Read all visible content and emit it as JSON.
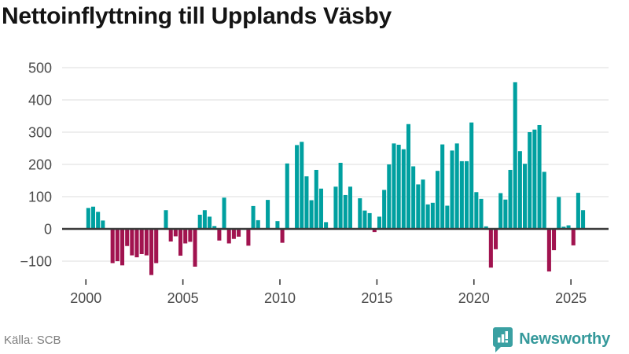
{
  "header": {
    "title": "Nettoinflyttning till Upplands Väsby"
  },
  "footer": {
    "source": "Källa: SCB",
    "brand": "Newsworthy"
  },
  "colors": {
    "positive": "#00A0A0",
    "negative": "#A1134F",
    "grid": "#E3E3E3",
    "axis": "#3A3A3A",
    "tick_label": "#4A4A4A",
    "title": "#141414",
    "source_text": "#7D7D7D",
    "brand_teal": "#35999B",
    "background": "#FFFFFF"
  },
  "chart_data": {
    "type": "bar",
    "title": "Nettoinflyttning till Upplands Väsby",
    "frequency": "quarterly",
    "x_start": "2000Q1",
    "x_end": "2025Q3",
    "categories": [
      "2000Q1",
      "2000Q2",
      "2000Q3",
      "2000Q4",
      "2001Q1",
      "2001Q2",
      "2001Q3",
      "2001Q4",
      "2002Q1",
      "2002Q2",
      "2002Q3",
      "2002Q4",
      "2003Q1",
      "2003Q2",
      "2003Q3",
      "2003Q4",
      "2004Q1",
      "2004Q2",
      "2004Q3",
      "2004Q4",
      "2005Q1",
      "2005Q2",
      "2005Q3",
      "2005Q4",
      "2006Q1",
      "2006Q2",
      "2006Q3",
      "2006Q4",
      "2007Q1",
      "2007Q2",
      "2007Q3",
      "2007Q4",
      "2008Q1",
      "2008Q2",
      "2008Q3",
      "2008Q4",
      "2009Q1",
      "2009Q2",
      "2009Q3",
      "2009Q4",
      "2010Q1",
      "2010Q2",
      "2010Q3",
      "2010Q4",
      "2011Q1",
      "2011Q2",
      "2011Q3",
      "2011Q4",
      "2012Q1",
      "2012Q2",
      "2012Q3",
      "2012Q4",
      "2013Q1",
      "2013Q2",
      "2013Q3",
      "2013Q4",
      "2014Q1",
      "2014Q2",
      "2014Q3",
      "2014Q4",
      "2015Q1",
      "2015Q2",
      "2015Q3",
      "2015Q4",
      "2016Q1",
      "2016Q2",
      "2016Q3",
      "2016Q4",
      "2017Q1",
      "2017Q2",
      "2017Q3",
      "2017Q4",
      "2018Q1",
      "2018Q2",
      "2018Q3",
      "2018Q4",
      "2019Q1",
      "2019Q2",
      "2019Q3",
      "2019Q4",
      "2020Q1",
      "2020Q2",
      "2020Q3",
      "2020Q4",
      "2021Q1",
      "2021Q2",
      "2021Q3",
      "2021Q4",
      "2022Q1",
      "2022Q2",
      "2022Q3",
      "2022Q4",
      "2023Q1",
      "2023Q2",
      "2023Q3",
      "2023Q4",
      "2024Q1",
      "2024Q2",
      "2024Q3",
      "2024Q4",
      "2025Q1",
      "2025Q2",
      "2025Q3"
    ],
    "values": [
      65,
      69,
      53,
      26,
      0,
      -106,
      -100,
      -113,
      -53,
      -82,
      -88,
      -78,
      -82,
      -143,
      -106,
      0,
      58,
      -39,
      -23,
      -83,
      -45,
      -40,
      -117,
      44,
      58,
      38,
      9,
      -36,
      97,
      -45,
      -31,
      -24,
      0,
      -52,
      71,
      27,
      0,
      90,
      0,
      24,
      -43,
      203,
      0,
      260,
      270,
      163,
      89,
      183,
      125,
      21,
      0,
      131,
      205,
      105,
      131,
      0,
      95,
      57,
      49,
      -10,
      38,
      121,
      200,
      265,
      261,
      247,
      325,
      194,
      138,
      153,
      76,
      81,
      180,
      262,
      72,
      243,
      265,
      210,
      210,
      330,
      114,
      93,
      8,
      -120,
      -63,
      111,
      91,
      183,
      455,
      241,
      202,
      300,
      308,
      322,
      177,
      -132,
      -66,
      99,
      7,
      11,
      -51,
      112,
      58
    ],
    "x_tick_years": [
      2000,
      2005,
      2010,
      2015,
      2020,
      2025
    ],
    "y_ticks": [
      500,
      400,
      300,
      200,
      100,
      0,
      -100
    ],
    "ylim": [
      -160,
      510
    ],
    "grid": true,
    "legend": "none",
    "bar_color_positive": "#00A0A0",
    "bar_color_negative": "#A1134F"
  }
}
